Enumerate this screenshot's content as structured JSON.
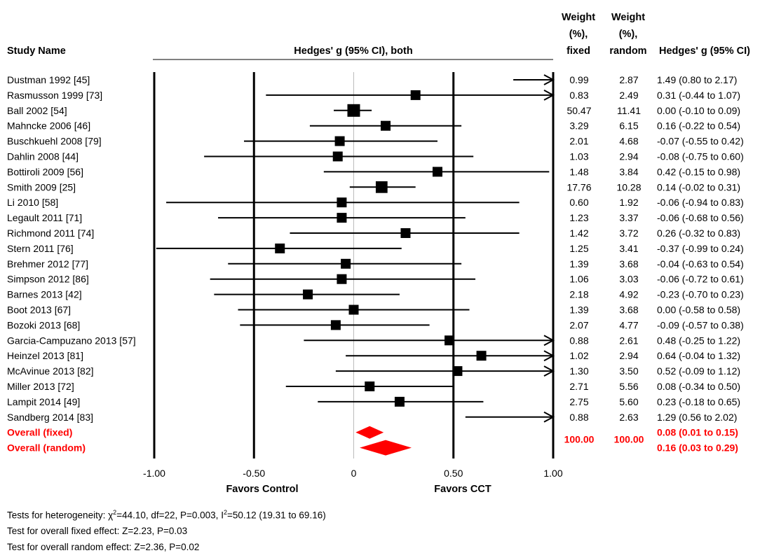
{
  "headers": {
    "study_name": "Study Name",
    "plot_title": "Hedges' g (95% CI), both",
    "weight_fixed": [
      "Weight",
      "(%),",
      "fixed"
    ],
    "weight_random": [
      "Weight",
      "(%),",
      "random"
    ],
    "effect": "Hedges' g (95% CI)"
  },
  "axis": {
    "favors_left": "Favors Control",
    "favors_right": "Favors CCT"
  },
  "footer": {
    "heterogeneity_prefix": "Tests for heterogeneity: χ",
    "heterogeneity_chi_sup": "2",
    "heterogeneity_mid": "=44.10, df=22, P=0.003, I",
    "heterogeneity_i_sup": "2",
    "heterogeneity_suffix": "=50.12 (19.31 to 69.16)",
    "fixed_effect": "Test for overall fixed effect: Z=2.23, P=0.03",
    "random_effect": "Test for overall random effect: Z=2.36, P=0.02"
  },
  "colors": {
    "overall": "#ff0000",
    "marker": "#000000"
  },
  "chart_data": {
    "type": "forest",
    "xlim": [
      -1.0,
      1.0
    ],
    "xticks": [
      "-1.00",
      "-0.50",
      "0",
      "0.50",
      "1.00"
    ],
    "xtick_values": [
      -1.0,
      -0.5,
      0.0,
      0.5,
      1.0
    ],
    "studies": [
      {
        "name": "Dustman 1992 [45]",
        "g": 1.49,
        "lo": 0.8,
        "hi": 2.17,
        "w_fixed": "0.99",
        "w_random": "2.87",
        "ci": "1.49 (0.80 to 2.17)"
      },
      {
        "name": "Rasmusson 1999 [73]",
        "g": 0.31,
        "lo": -0.44,
        "hi": 1.07,
        "w_fixed": "0.83",
        "w_random": "2.49",
        "ci": "0.31 (-0.44 to 1.07)"
      },
      {
        "name": "Ball 2002 [54]",
        "g": 0.0,
        "lo": -0.1,
        "hi": 0.09,
        "w_fixed": "50.47",
        "w_random": "11.41",
        "ci": "0.00 (-0.10 to 0.09)"
      },
      {
        "name": "Mahncke 2006 [46]",
        "g": 0.16,
        "lo": -0.22,
        "hi": 0.54,
        "w_fixed": "3.29",
        "w_random": "6.15",
        "ci": "0.16 (-0.22 to 0.54)"
      },
      {
        "name": "Buschkuehl 2008 [79]",
        "g": -0.07,
        "lo": -0.55,
        "hi": 0.42,
        "w_fixed": "2.01",
        "w_random": "4.68",
        "ci": "-0.07 (-0.55 to 0.42)"
      },
      {
        "name": "Dahlin 2008 [44]",
        "g": -0.08,
        "lo": -0.75,
        "hi": 0.6,
        "w_fixed": "1.03",
        "w_random": "2.94",
        "ci": "-0.08 (-0.75 to 0.60)"
      },
      {
        "name": "Bottiroli 2009 [56]",
        "g": 0.42,
        "lo": -0.15,
        "hi": 0.98,
        "w_fixed": "1.48",
        "w_random": "3.84",
        "ci": "0.42 (-0.15 to 0.98)"
      },
      {
        "name": "Smith 2009 [25]",
        "g": 0.14,
        "lo": -0.02,
        "hi": 0.31,
        "w_fixed": "17.76",
        "w_random": "10.28",
        "ci": "0.14 (-0.02 to 0.31)"
      },
      {
        "name": "Li 2010 [58]",
        "g": -0.06,
        "lo": -0.94,
        "hi": 0.83,
        "w_fixed": "0.60",
        "w_random": "1.92",
        "ci": "-0.06 (-0.94 to 0.83)"
      },
      {
        "name": "Legault 2011 [71]",
        "g": -0.06,
        "lo": -0.68,
        "hi": 0.56,
        "w_fixed": "1.23",
        "w_random": "3.37",
        "ci": "-0.06 (-0.68 to 0.56)"
      },
      {
        "name": "Richmond 2011 [74]",
        "g": 0.26,
        "lo": -0.32,
        "hi": 0.83,
        "w_fixed": "1.42",
        "w_random": "3.72",
        "ci": "0.26 (-0.32 to 0.83)"
      },
      {
        "name": "Stern 2011 [76]",
        "g": -0.37,
        "lo": -0.99,
        "hi": 0.24,
        "w_fixed": "1.25",
        "w_random": "3.41",
        "ci": "-0.37 (-0.99 to 0.24)"
      },
      {
        "name": "Brehmer 2012 [77]",
        "g": -0.04,
        "lo": -0.63,
        "hi": 0.54,
        "w_fixed": "1.39",
        "w_random": "3.68",
        "ci": "-0.04 (-0.63 to 0.54)"
      },
      {
        "name": "Simpson 2012 [86]",
        "g": -0.06,
        "lo": -0.72,
        "hi": 0.61,
        "w_fixed": "1.06",
        "w_random": "3.03",
        "ci": "-0.06 (-0.72 to 0.61)"
      },
      {
        "name": "Barnes 2013 [42]",
        "g": -0.23,
        "lo": -0.7,
        "hi": 0.23,
        "w_fixed": "2.18",
        "w_random": "4.92",
        "ci": "-0.23 (-0.70 to 0.23)"
      },
      {
        "name": "Boot 2013 [67]",
        "g": 0.0,
        "lo": -0.58,
        "hi": 0.58,
        "w_fixed": "1.39",
        "w_random": "3.68",
        "ci": "0.00 (-0.58 to 0.58)"
      },
      {
        "name": "Bozoki 2013 [68]",
        "g": -0.09,
        "lo": -0.57,
        "hi": 0.38,
        "w_fixed": "2.07",
        "w_random": "4.77",
        "ci": "-0.09 (-0.57 to 0.38)"
      },
      {
        "name": "Garcia-Campuzano 2013 [57]",
        "g": 0.48,
        "lo": -0.25,
        "hi": 1.22,
        "w_fixed": "0.88",
        "w_random": "2.61",
        "ci": "0.48 (-0.25 to 1.22)"
      },
      {
        "name": "Heinzel 2013 [81]",
        "g": 0.64,
        "lo": -0.04,
        "hi": 1.32,
        "w_fixed": "1.02",
        "w_random": "2.94",
        "ci": "0.64 (-0.04 to 1.32)"
      },
      {
        "name": "McAvinue 2013 [82]",
        "g": 0.52,
        "lo": -0.09,
        "hi": 1.12,
        "w_fixed": "1.30",
        "w_random": "3.50",
        "ci": "0.52 (-0.09 to 1.12)"
      },
      {
        "name": "Miller 2013 [72]",
        "g": 0.08,
        "lo": -0.34,
        "hi": 0.5,
        "w_fixed": "2.71",
        "w_random": "5.56",
        "ci": "0.08 (-0.34 to 0.50)"
      },
      {
        "name": "Lampit 2014 [49]",
        "g": 0.23,
        "lo": -0.18,
        "hi": 0.65,
        "w_fixed": "2.75",
        "w_random": "5.60",
        "ci": "0.23 (-0.18 to 0.65)"
      },
      {
        "name": "Sandberg 2014 [83]",
        "g": 1.29,
        "lo": 0.56,
        "hi": 2.02,
        "w_fixed": "0.88",
        "w_random": "2.63",
        "ci": "1.29 (0.56 to 2.02)"
      }
    ],
    "overall": [
      {
        "name": "Overall (fixed)",
        "g": 0.08,
        "lo": 0.01,
        "hi": 0.15,
        "w_fixed": "100.00",
        "w_random": "100.00",
        "ci": "0.08 (0.01 to 0.15)"
      },
      {
        "name": "Overall (random)",
        "g": 0.16,
        "lo": 0.03,
        "hi": 0.29,
        "w_fixed": "",
        "w_random": "",
        "ci": "0.16 (0.03 to 0.29)"
      }
    ]
  }
}
